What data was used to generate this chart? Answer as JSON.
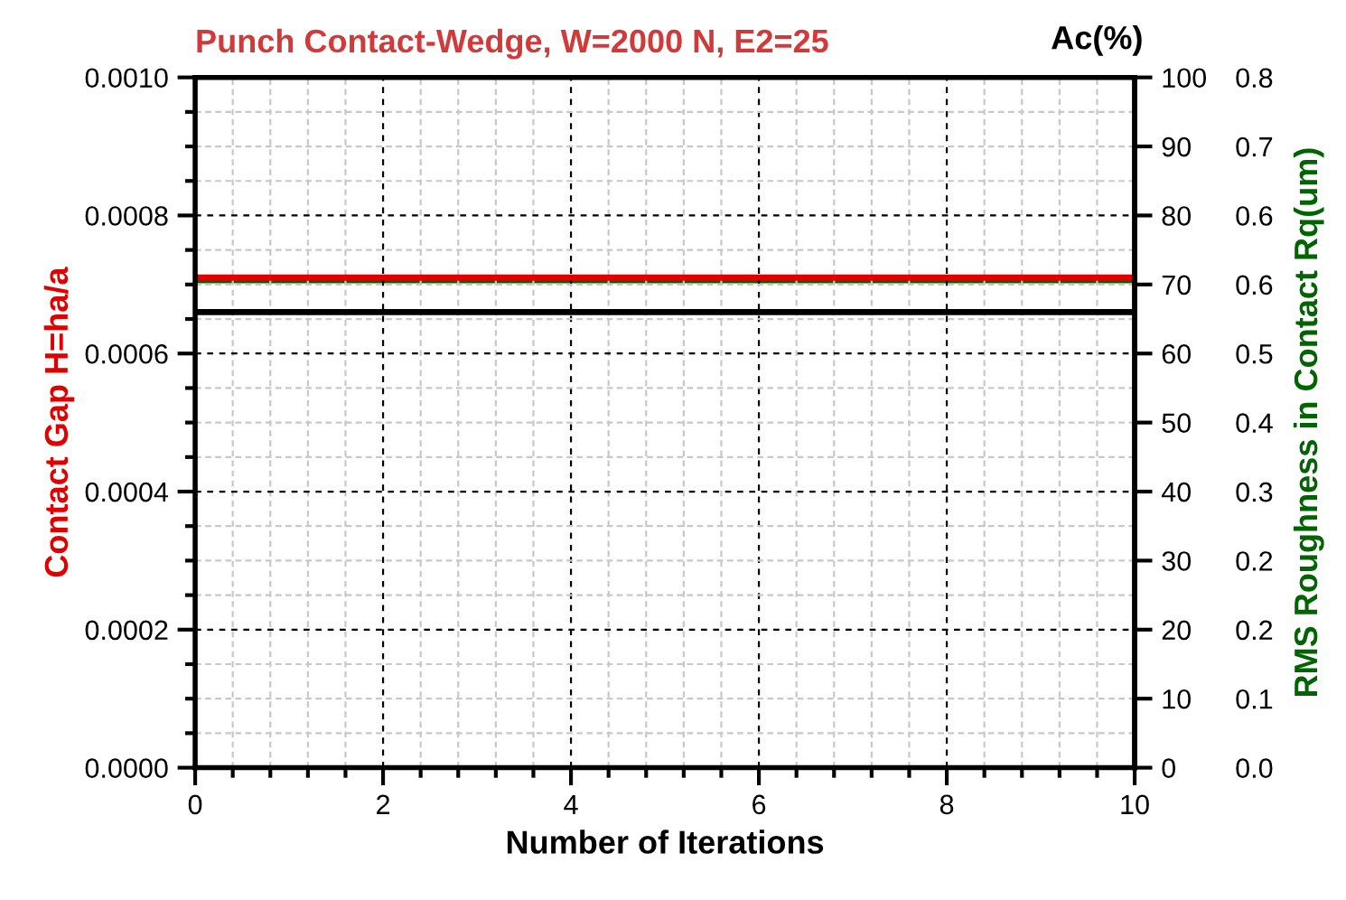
{
  "chart_data": {
    "type": "line",
    "title": "Punch Contact-Wedge, W=2000 N, E2=25",
    "xlabel": "Number of Iterations",
    "ylabel": "Contact Gap H=ha/a",
    "y2label": "Ac(%)",
    "y3label": "RMS Roughness in Contact Rq(um)",
    "x": [
      0,
      10
    ],
    "series": [
      {
        "color": "#006400",
        "values": [
          0.565,
          0.565
        ],
        "axis": "y3"
      },
      {
        "color": "#e00000",
        "values": [
          0.00071,
          0.00071
        ]
      },
      {
        "color": "#000000",
        "values": [
          66,
          66
        ],
        "axis": "y2"
      }
    ],
    "xlim": [
      0,
      10
    ],
    "xticks": [
      0,
      2,
      4,
      6,
      8,
      10
    ],
    "ylim": [
      0,
      0.001
    ],
    "yticks": [
      {
        "value": 0,
        "label": "0.0000"
      },
      {
        "value": 0.0002,
        "label": "0.0002"
      },
      {
        "value": 0.0004,
        "label": "0.0004"
      },
      {
        "value": 0.0006,
        "label": "0.0006"
      },
      {
        "value": 0.0008,
        "label": "0.0008"
      },
      {
        "value": 0.001,
        "label": "0.0010"
      }
    ],
    "y2lim": [
      0,
      100
    ],
    "y2ticks": [
      0,
      10,
      20,
      30,
      40,
      50,
      60,
      70,
      80,
      90,
      100
    ],
    "y3lim": [
      0,
      0.8
    ],
    "y3ticks": [
      {
        "value": 0,
        "label": "0.0"
      },
      {
        "value": 0.08,
        "label": "0.1"
      },
      {
        "value": 0.16,
        "label": "0.2"
      },
      {
        "value": 0.24,
        "label": "0.2"
      },
      {
        "value": 0.32,
        "label": "0.3"
      },
      {
        "value": 0.4,
        "label": "0.4"
      },
      {
        "value": 0.48,
        "label": "0.5"
      },
      {
        "value": 0.56,
        "label": "0.6"
      },
      {
        "value": 0.64,
        "label": "0.6"
      },
      {
        "value": 0.72,
        "label": "0.7"
      },
      {
        "value": 0.8,
        "label": "0.8"
      }
    ],
    "grid": true,
    "marker": "none",
    "line_style": "solid"
  }
}
